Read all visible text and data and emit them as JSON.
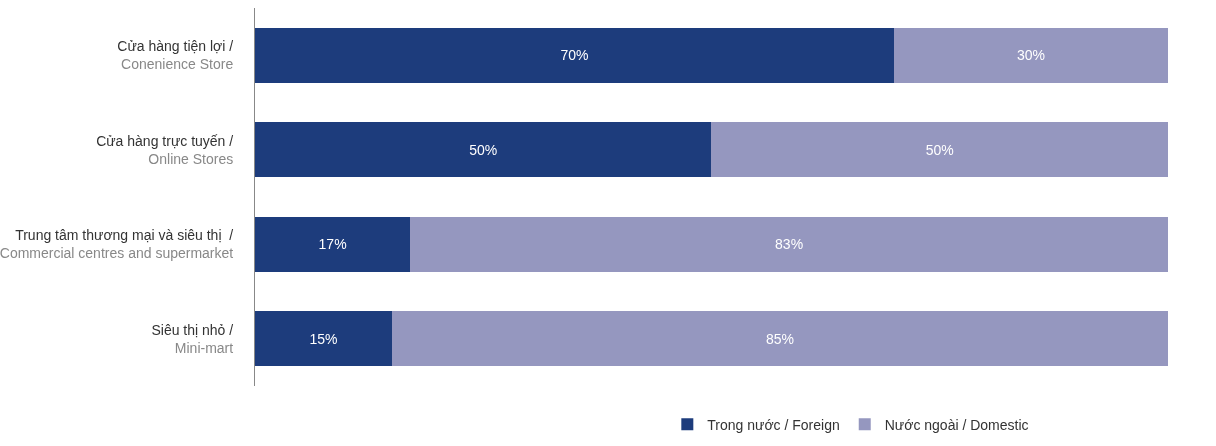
{
  "chart_data": {
    "type": "bar",
    "orientation": "horizontal",
    "stacked": true,
    "legend": "bottom",
    "categories": [
      "Cửa hàng tiện lợi /\nConenience Store",
      "Cửa hàng trực tuyến /\nOnline Stores",
      "Trung tâm thương mại và siêu thị  /\nCommercial centres and supermarket",
      "Siêu thị nhỏ /\nMini-mart"
    ],
    "series": [
      {
        "name": "Trong nước / Foreign",
        "color": "#1d3c7c",
        "values": [
          70,
          50,
          17,
          15
        ],
        "value_labels": [
          "70%",
          "50%",
          "17%",
          "15%"
        ]
      },
      {
        "name": "Nước ngoài / Domestic",
        "color": "#9597bf",
        "values": [
          30,
          50,
          83,
          85
        ],
        "value_labels": [
          "30%",
          "50%",
          "83%",
          "85%"
        ]
      }
    ]
  }
}
